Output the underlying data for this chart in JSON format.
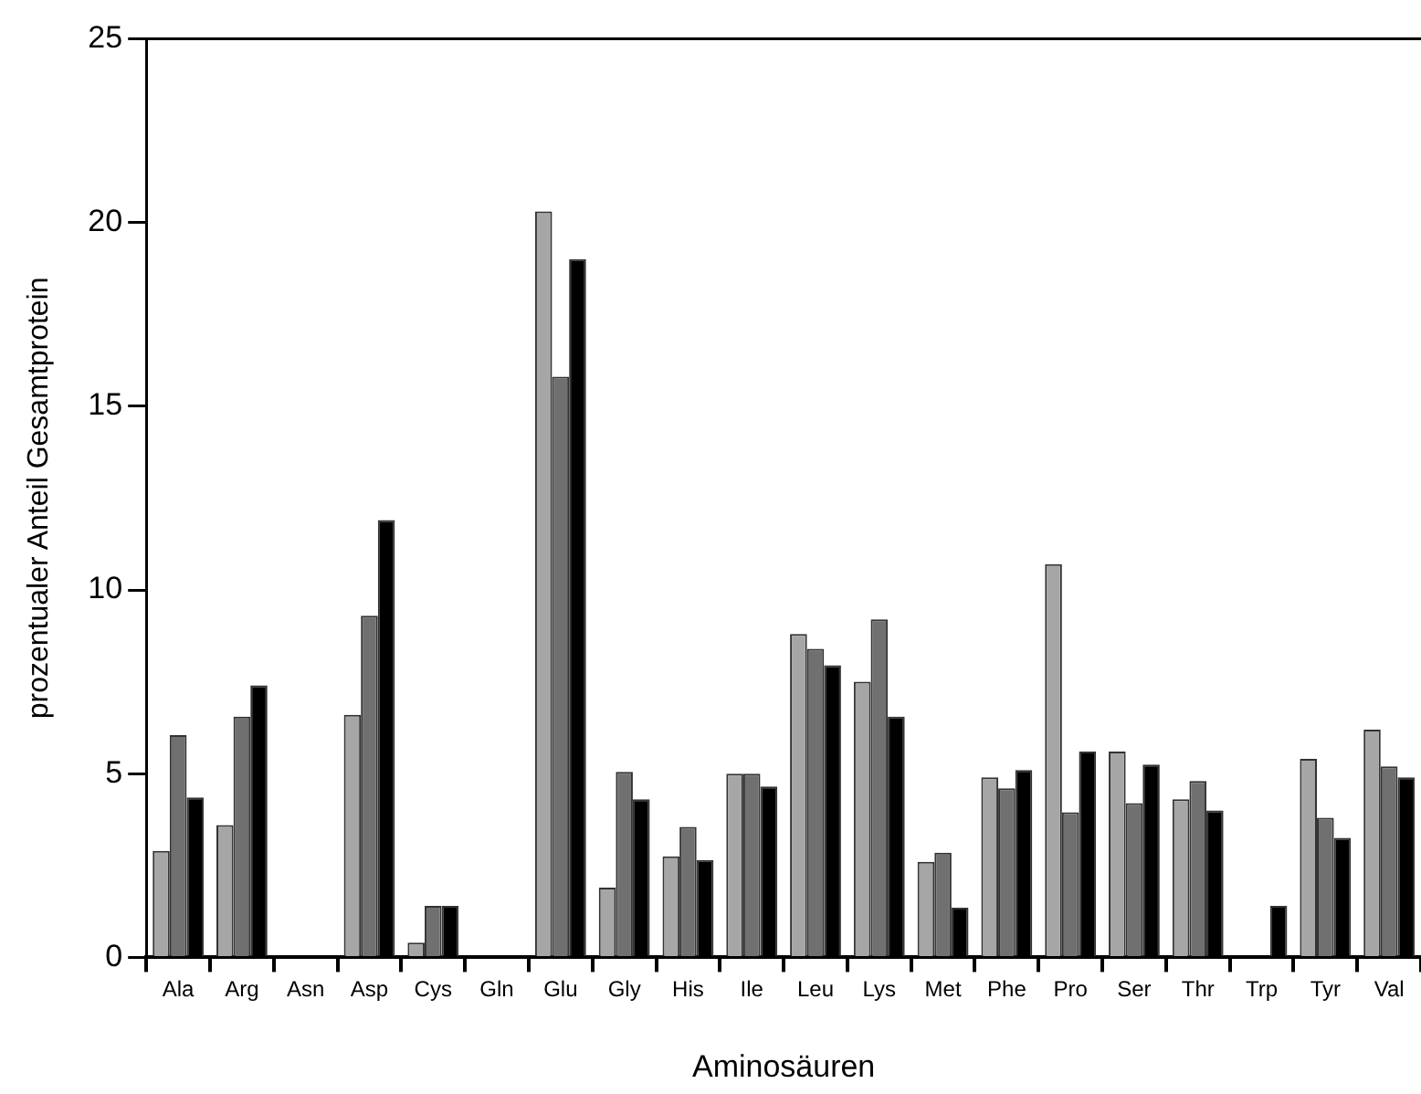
{
  "chart_data": {
    "type": "bar",
    "xlabel": "Aminosäuren",
    "ylabel": "prozentualer Anteil Gesamtprotein",
    "categories": [
      "Ala",
      "Arg",
      "Asn",
      "Asp",
      "Cys",
      "Gln",
      "Glu",
      "Gly",
      "His",
      "Ile",
      "Leu",
      "Lys",
      "Met",
      "Phe",
      "Pro",
      "Ser",
      "Thr",
      "Trp",
      "Tyr",
      "Val"
    ],
    "series": [
      {
        "color": "#a6a6a6",
        "values": [
          2.9,
          3.6,
          null,
          6.6,
          0.4,
          null,
          20.3,
          1.9,
          2.75,
          5.0,
          8.8,
          7.5,
          2.6,
          4.9,
          10.7,
          5.6,
          4.3,
          null,
          5.4,
          6.2
        ]
      },
      {
        "color": "#707070",
        "values": [
          6.05,
          6.55,
          null,
          9.3,
          1.4,
          null,
          15.8,
          5.05,
          3.55,
          5.0,
          8.4,
          9.2,
          2.85,
          4.6,
          3.95,
          4.2,
          4.8,
          null,
          3.8,
          5.2
        ]
      },
      {
        "color": "#000000",
        "values": [
          4.35,
          7.4,
          null,
          11.9,
          1.4,
          null,
          19.0,
          4.3,
          2.65,
          4.65,
          7.95,
          6.55,
          1.35,
          5.1,
          5.6,
          5.25,
          4.0,
          1.4,
          3.25,
          4.9
        ]
      }
    ],
    "ylim": [
      0,
      25
    ],
    "yticks": [
      0,
      5,
      10,
      15,
      20,
      25
    ],
    "grid": false,
    "legend": false
  }
}
